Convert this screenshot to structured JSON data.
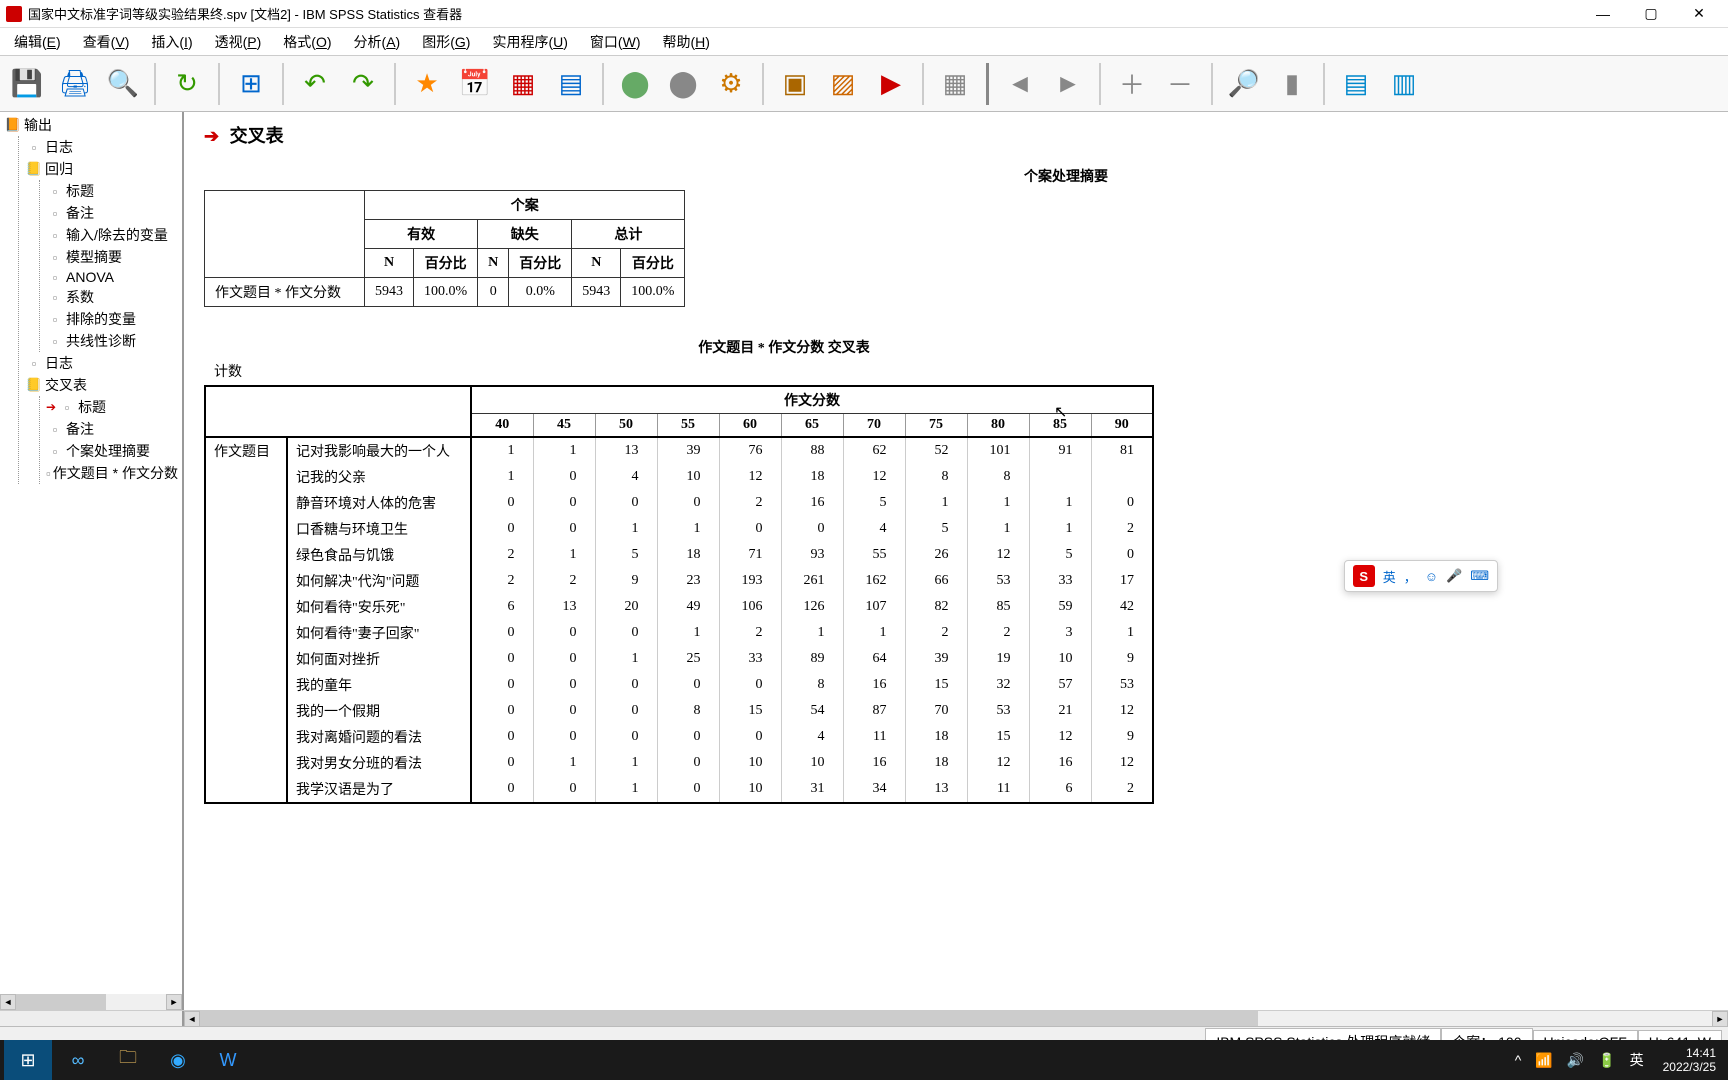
{
  "titlebar": {
    "text": "国家中文标准字词等级实验结果终.spv [文档2] - IBM SPSS Statistics 查看器"
  },
  "menubar": [
    {
      "label": "编辑",
      "u": "E"
    },
    {
      "label": "查看",
      "u": "V"
    },
    {
      "label": "插入",
      "u": "I"
    },
    {
      "label": "透视",
      "u": "P"
    },
    {
      "label": "格式",
      "u": "O"
    },
    {
      "label": "分析",
      "u": "A"
    },
    {
      "label": "图形",
      "u": "G"
    },
    {
      "label": "实用程序",
      "u": "U"
    },
    {
      "label": "窗口",
      "u": "W"
    },
    {
      "label": "帮助",
      "u": "H"
    }
  ],
  "tree": {
    "root": "输出",
    "items": [
      {
        "label": "日志",
        "icon": "page"
      },
      {
        "label": "回归",
        "icon": "book",
        "children": [
          {
            "label": "标题",
            "icon": "page"
          },
          {
            "label": "备注",
            "icon": "page"
          },
          {
            "label": "输入/除去的变量",
            "icon": "page"
          },
          {
            "label": "模型摘要",
            "icon": "page"
          },
          {
            "label": "ANOVA",
            "icon": "page"
          },
          {
            "label": "系数",
            "icon": "page"
          },
          {
            "label": "排除的变量",
            "icon": "page"
          },
          {
            "label": "共线性诊断",
            "icon": "page"
          }
        ]
      },
      {
        "label": "日志",
        "icon": "page"
      },
      {
        "label": "交叉表",
        "icon": "book",
        "children": [
          {
            "label": "标题",
            "icon": "page",
            "active": true
          },
          {
            "label": "备注",
            "icon": "page"
          },
          {
            "label": "个案处理摘要",
            "icon": "page"
          },
          {
            "label": "作文题目 * 作文分数",
            "icon": "page"
          }
        ]
      }
    ]
  },
  "section_title": "交叉表",
  "summary_table": {
    "caption": "个案处理摘要",
    "top": "个案",
    "cols": [
      "有效",
      "缺失",
      "总计"
    ],
    "subcols": [
      "N",
      "百分比",
      "N",
      "百分比",
      "N",
      "百分比"
    ],
    "row_label": "作文题目 * 作文分数",
    "row_vals": [
      "5943",
      "100.0%",
      "0",
      "0.0%",
      "5943",
      "100.0%"
    ]
  },
  "crosstab": {
    "caption": "作文题目 * 作文分数 交叉表",
    "count_label": "计数",
    "col_group": "作文分数",
    "side_label": "作文题目",
    "cols": [
      "40",
      "45",
      "50",
      "55",
      "60",
      "65",
      "70",
      "75",
      "80",
      "85",
      "90"
    ],
    "rows": [
      {
        "label": "记对我影响最大的一个人",
        "vals": [
          "1",
          "1",
          "13",
          "39",
          "76",
          "88",
          "62",
          "52",
          "101",
          "91",
          "81"
        ]
      },
      {
        "label": "记我的父亲",
        "vals": [
          "1",
          "0",
          "4",
          "10",
          "12",
          "18",
          "12",
          "8",
          "8",
          "",
          ""
        ]
      },
      {
        "label": "静音环境对人体的危害",
        "vals": [
          "0",
          "0",
          "0",
          "0",
          "2",
          "16",
          "5",
          "1",
          "1",
          "1",
          "0"
        ]
      },
      {
        "label": "口香糖与环境卫生",
        "vals": [
          "0",
          "0",
          "1",
          "1",
          "0",
          "0",
          "4",
          "5",
          "1",
          "1",
          "2"
        ]
      },
      {
        "label": "绿色食品与饥饿",
        "vals": [
          "2",
          "1",
          "5",
          "18",
          "71",
          "93",
          "55",
          "26",
          "12",
          "5",
          "0"
        ]
      },
      {
        "label": "如何解决\"代沟\"问题",
        "vals": [
          "2",
          "2",
          "9",
          "23",
          "193",
          "261",
          "162",
          "66",
          "53",
          "33",
          "17"
        ]
      },
      {
        "label": "如何看待\"安乐死\"",
        "vals": [
          "6",
          "13",
          "20",
          "49",
          "106",
          "126",
          "107",
          "82",
          "85",
          "59",
          "42"
        ]
      },
      {
        "label": "如何看待\"妻子回家\"",
        "vals": [
          "0",
          "0",
          "0",
          "1",
          "2",
          "1",
          "1",
          "2",
          "2",
          "3",
          "1"
        ]
      },
      {
        "label": "如何面对挫折",
        "vals": [
          "0",
          "0",
          "1",
          "25",
          "33",
          "89",
          "64",
          "39",
          "19",
          "10",
          "9"
        ]
      },
      {
        "label": "我的童年",
        "vals": [
          "0",
          "0",
          "0",
          "0",
          "0",
          "8",
          "16",
          "15",
          "32",
          "57",
          "53"
        ]
      },
      {
        "label": "我的一个假期",
        "vals": [
          "0",
          "0",
          "0",
          "8",
          "15",
          "54",
          "87",
          "70",
          "53",
          "21",
          "12"
        ]
      },
      {
        "label": "我对离婚问题的看法",
        "vals": [
          "0",
          "0",
          "0",
          "0",
          "0",
          "4",
          "11",
          "18",
          "15",
          "12",
          "9"
        ]
      },
      {
        "label": "我对男女分班的看法",
        "vals": [
          "0",
          "1",
          "1",
          "0",
          "10",
          "10",
          "16",
          "18",
          "12",
          "16",
          "12"
        ]
      },
      {
        "label": "我学汉语是为了",
        "vals": [
          "0",
          "0",
          "1",
          "0",
          "10",
          "31",
          "34",
          "13",
          "11",
          "6",
          "2"
        ]
      }
    ]
  },
  "status": {
    "proc": "IBM SPSS Statistics 处理程序就绪",
    "cases": "个案：  100",
    "unicode": "Unicode:OFF",
    "hw": "H: 641, W"
  },
  "taskbar": {
    "time": "14:41",
    "date": "2022/3/25",
    "ime": "英"
  },
  "ime_float": {
    "logo": "S",
    "lang": "英",
    "comma": "，"
  }
}
